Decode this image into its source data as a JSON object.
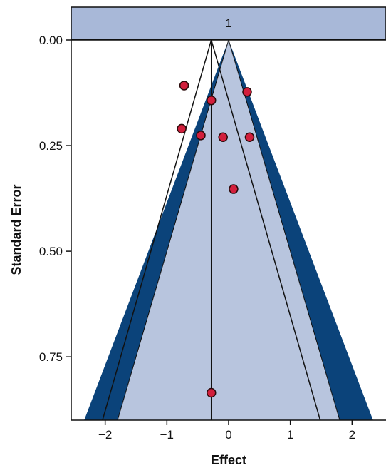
{
  "chart_data": {
    "type": "scatter",
    "subtype": "funnel-plot",
    "facet_label": "1",
    "xlabel": "Effect",
    "ylabel": "Standard Error",
    "xlim": [
      -2.55,
      2.55
    ],
    "ylim": [
      0.0,
      0.9
    ],
    "y_reversed": true,
    "x_ticks": [
      -2,
      -1,
      0,
      1,
      2
    ],
    "x_tick_labels": [
      "−2",
      "−1",
      "0",
      "1",
      "2"
    ],
    "y_ticks": [
      0.0,
      0.25,
      0.5,
      0.75
    ],
    "y_tick_labels": [
      "0.00",
      "0.25",
      "0.50",
      "0.75"
    ],
    "null_effect": 0.0,
    "pooled_effect": -0.28,
    "contour_multipliers": [
      2.0,
      2.6
    ],
    "points": [
      {
        "x": -0.72,
        "y": 0.108
      },
      {
        "x": -0.76,
        "y": 0.21
      },
      {
        "x": -0.45,
        "y": 0.226
      },
      {
        "x": -0.28,
        "y": 0.143
      },
      {
        "x": -0.09,
        "y": 0.23
      },
      {
        "x": 0.3,
        "y": 0.123
      },
      {
        "x": 0.34,
        "y": 0.23
      },
      {
        "x": 0.08,
        "y": 0.353
      },
      {
        "x": -0.28,
        "y": 0.835
      }
    ],
    "colors": {
      "panel_background": "#ffffff",
      "inner_region": "#b8c5de",
      "outer_band": "#0b437a",
      "strip": "#a8b8d8",
      "point_fill": "#d21f3c",
      "point_stroke": "#2a0a0a",
      "lines": "#111111"
    }
  }
}
